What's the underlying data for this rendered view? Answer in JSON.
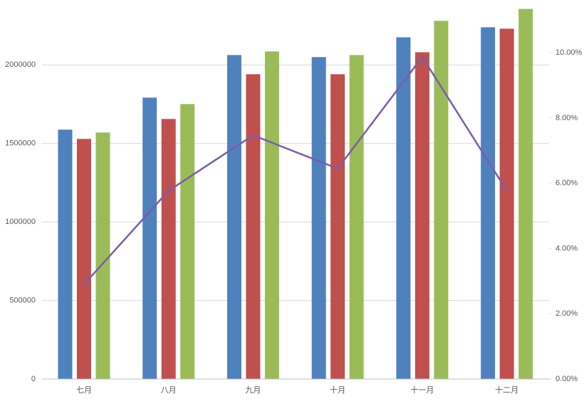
{
  "chart_data": {
    "type": "bar-line",
    "categories": [
      "七月",
      "八月",
      "九月",
      "十月",
      "十一月",
      "十二月"
    ],
    "series": [
      {
        "type": "bar",
        "color": "#4f81bd",
        "values": [
          1588000,
          1792000,
          2063000,
          2050000,
          2176000,
          2240000
        ]
      },
      {
        "type": "bar",
        "color": "#c0504d",
        "values": [
          1529000,
          1656000,
          1941000,
          1941000,
          2081000,
          2231000
        ]
      },
      {
        "type": "bar",
        "color": "#9bbb59",
        "values": [
          1570000,
          1751000,
          2086000,
          2063000,
          2281000,
          2357000
        ]
      },
      {
        "type": "line",
        "axis": "y2",
        "color": "#7a5ea8",
        "values": [
          2.9,
          5.77,
          7.47,
          6.45,
          9.87,
          5.77
        ]
      }
    ],
    "ylim": [
      0,
      2400000
    ],
    "yticks": [
      0,
      500000,
      1000000,
      1500000,
      2000000
    ],
    "y2lim": [
      0,
      11.55
    ],
    "y2ticks": [
      {
        "value": 0,
        "label": "0.00%"
      },
      {
        "value": 2,
        "label": "2.00%"
      },
      {
        "value": 4,
        "label": "4.00%"
      },
      {
        "value": 6,
        "label": "6.00%"
      },
      {
        "value": 8,
        "label": "8.00%"
      },
      {
        "value": 10,
        "label": "10.00%"
      }
    ],
    "grid": true
  }
}
